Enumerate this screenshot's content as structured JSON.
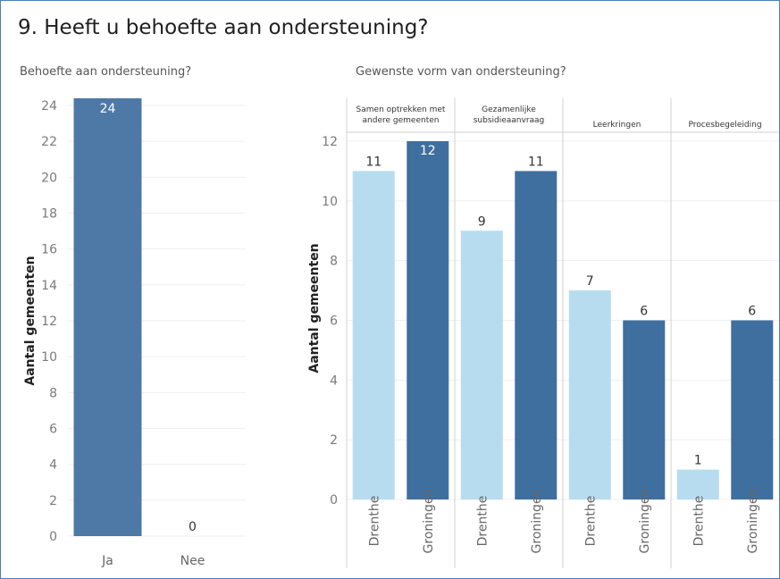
{
  "page": {
    "title": "9. Heeft u behoefte aan ondersteuning?"
  },
  "chart_data": [
    {
      "type": "bar",
      "title": "Behoefte aan ondersteuning?",
      "categories": [
        "Ja",
        "Nee"
      ],
      "values": [
        24,
        0
      ],
      "data_labels": [
        "24",
        "0"
      ],
      "ylabel": "Aantal gemeenten",
      "ylim": [
        0,
        24
      ],
      "yticks": [
        0,
        2,
        4,
        6,
        8,
        10,
        12,
        14,
        16,
        18,
        20,
        22,
        24
      ],
      "color": "#4e79a7",
      "grid": true
    },
    {
      "type": "bar",
      "title": "Gewenste vorm van ondersteuning?",
      "ylabel": "Aantal gemeenten",
      "ylim": [
        0,
        12
      ],
      "yticks": [
        0,
        2,
        4,
        6,
        8,
        10,
        12
      ],
      "grid": true,
      "colors": {
        "Drenthe": "#b7dcf0",
        "Groningen": "#3f6f9f"
      },
      "panels": [
        {
          "header": [
            "Samen optrekken met",
            "andere gemeenten"
          ],
          "bars": [
            {
              "category": "Drenthe",
              "value": 11,
              "label": "11"
            },
            {
              "category": "Groningen",
              "value": 12,
              "label": "12"
            }
          ]
        },
        {
          "header": [
            "Gezamenlijke",
            "subsidieaanvraag"
          ],
          "bars": [
            {
              "category": "Drenthe",
              "value": 9,
              "label": "9"
            },
            {
              "category": "Groningen",
              "value": 11,
              "label": "11"
            }
          ]
        },
        {
          "header": [
            "Leerkringen"
          ],
          "bars": [
            {
              "category": "Drenthe",
              "value": 7,
              "label": "7"
            },
            {
              "category": "Groningen",
              "value": 6,
              "label": "6"
            }
          ]
        },
        {
          "header": [
            "Procesbegeleiding"
          ],
          "bars": [
            {
              "category": "Drenthe",
              "value": 1,
              "label": "1"
            },
            {
              "category": "Groningen",
              "value": 6,
              "label": "6"
            }
          ]
        }
      ]
    }
  ]
}
